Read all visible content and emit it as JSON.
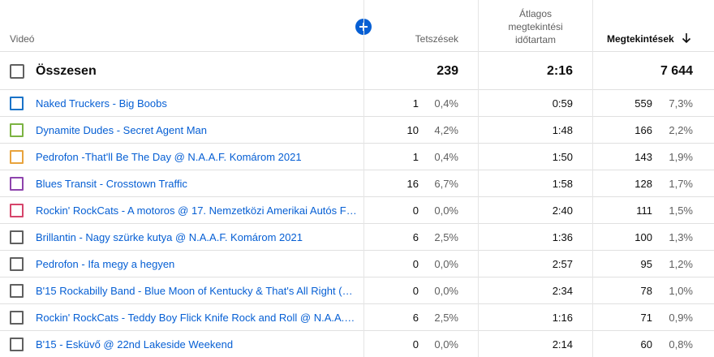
{
  "header": {
    "video_label": "Videó",
    "likes_label": "Tetszések",
    "avg_label_line1": "Átlagos",
    "avg_label_line2": "megtekintési",
    "avg_label_line3": "időtartam",
    "views_label": "Megtekintések",
    "sort_icon": "arrow-down-icon",
    "add_icon": "add-circle-icon"
  },
  "colors": {
    "accent": "#065fd4",
    "text": "#0d0d0d",
    "secondary_text": "#606060",
    "divider": "#e0e0e0"
  },
  "total": {
    "label": "Összesen",
    "likes": "239",
    "avg_duration": "2:16",
    "views": "7 644"
  },
  "rows": [
    {
      "title": "Naked Truckers - Big Boobs",
      "checkbox_color": "#1a73c8",
      "likes": "1",
      "likes_pct": "0,4%",
      "avg": "0:59",
      "views": "559",
      "views_pct": "7,3%"
    },
    {
      "title": "Dynamite Dudes - Secret Agent Man",
      "checkbox_color": "#7cb342",
      "likes": "10",
      "likes_pct": "4,2%",
      "avg": "1:48",
      "views": "166",
      "views_pct": "2,2%"
    },
    {
      "title": "Pedrofon -That'll Be The Day @ N.A.A.F. Komárom 2021",
      "checkbox_color": "#e8a33d",
      "likes": "1",
      "likes_pct": "0,4%",
      "avg": "1:50",
      "views": "143",
      "views_pct": "1,9%"
    },
    {
      "title": "Blues Transit - Crosstown Traffic",
      "checkbox_color": "#8e44ad",
      "likes": "16",
      "likes_pct": "6,7%",
      "avg": "1:58",
      "views": "128",
      "views_pct": "1,7%"
    },
    {
      "title": "Rockin' RockCats - A motoros @ 17. Nemzetközi Amerikai Autós Fe...",
      "checkbox_color": "#d6456b",
      "likes": "0",
      "likes_pct": "0,0%",
      "avg": "2:40",
      "views": "111",
      "views_pct": "1,5%"
    },
    {
      "title": "Brillantin - Nagy szürke kutya @ N.A.A.F. Komárom 2021",
      "checkbox_color": "#606060",
      "likes": "6",
      "likes_pct": "2,5%",
      "avg": "1:36",
      "views": "100",
      "views_pct": "1,3%"
    },
    {
      "title": "Pedrofon - Ifa megy a hegyen",
      "checkbox_color": "#606060",
      "likes": "0",
      "likes_pct": "0,0%",
      "avg": "2:57",
      "views": "95",
      "views_pct": "1,2%"
    },
    {
      "title": "B'15 Rockabilly Band - Blue Moon of Kentucky & That's All Right (M...",
      "checkbox_color": "#606060",
      "likes": "0",
      "likes_pct": "0,0%",
      "avg": "2:34",
      "views": "78",
      "views_pct": "1,0%"
    },
    {
      "title": "Rockin' RockCats - Teddy Boy Flick Knife Rock and Roll @ N.A.A.F. ...",
      "checkbox_color": "#606060",
      "likes": "6",
      "likes_pct": "2,5%",
      "avg": "1:16",
      "views": "71",
      "views_pct": "0,9%"
    },
    {
      "title": "B'15 - Esküvő @ 22nd Lakeside Weekend",
      "checkbox_color": "#606060",
      "likes": "0",
      "likes_pct": "0,0%",
      "avg": "2:14",
      "views": "60",
      "views_pct": "0,8%"
    }
  ]
}
